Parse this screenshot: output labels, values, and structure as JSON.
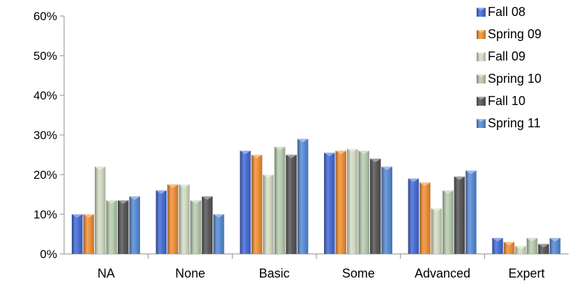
{
  "chart_data": {
    "type": "bar",
    "title": "",
    "xlabel": "",
    "ylabel": "",
    "ylim": [
      0,
      60
    ],
    "y_ticks": [
      0,
      10,
      20,
      30,
      40,
      50,
      60
    ],
    "y_tick_labels": [
      "0%",
      "10%",
      "20%",
      "30%",
      "40%",
      "50%",
      "60%"
    ],
    "grid": false,
    "legend_position": "right",
    "categories": [
      "NA",
      "None",
      "Basic",
      "Some",
      "Advanced",
      "Expert"
    ],
    "series": [
      {
        "name": "Fall 08",
        "color": "#4a6fd6",
        "values": [
          10,
          16,
          26,
          25.5,
          19,
          4
        ]
      },
      {
        "name": "Spring 09",
        "color": "#f0923a",
        "values": [
          10,
          17.5,
          25,
          26,
          18,
          3
        ]
      },
      {
        "name": "Fall 09",
        "color": "#d4dcc4",
        "values": [
          22,
          17.5,
          20,
          26.5,
          11.5,
          2
        ]
      },
      {
        "name": "Spring 10",
        "color": "#b8ccb0",
        "values": [
          13.5,
          13.5,
          27,
          26,
          16,
          4
        ]
      },
      {
        "name": "Fall 10",
        "color": "#5a5a5a",
        "values": [
          13.5,
          14.5,
          25,
          24,
          19.5,
          2.5
        ]
      },
      {
        "name": "Spring 11",
        "color": "#5b8ed6",
        "values": [
          14.5,
          10,
          29,
          22,
          21,
          4
        ]
      }
    ]
  }
}
